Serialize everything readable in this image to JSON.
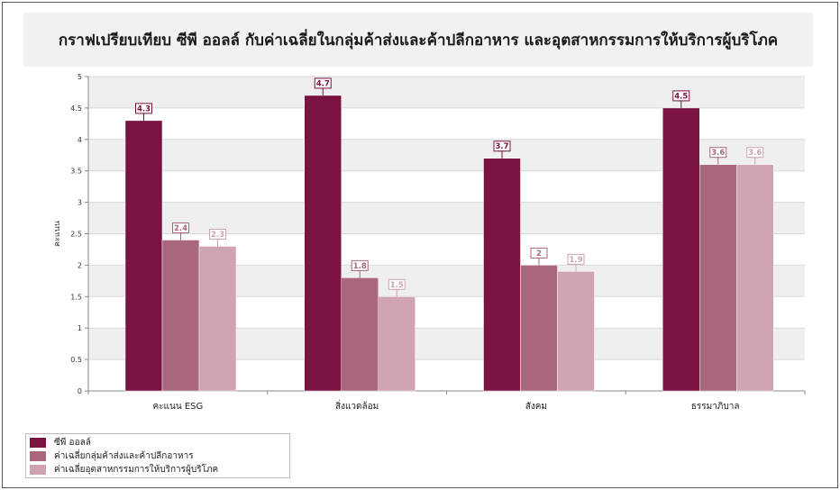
{
  "chart_data": {
    "type": "bar",
    "title": "กราฟเปรียบเทียบ ซีพี ออลล์ กับค่าเฉลี่ยในกลุ่มค้าส่งและค้าปลีกอาหาร และอุตสาหกรรมการให้บริการผู้บริโภค",
    "xlabel": "",
    "ylabel": "คะแนน",
    "ylim": [
      0,
      5
    ],
    "yticks": [
      "0",
      "0.5",
      "1",
      "1.5",
      "2",
      "2.5",
      "3",
      "3.5",
      "4",
      "4.5",
      "5"
    ],
    "grid": true,
    "legend_position": "bottom-left",
    "categories": [
      "คะแนน ESG",
      "สิ่งแวดล้อม",
      "สังคม",
      "ธรรมาภิบาล"
    ],
    "series": [
      {
        "name": "ซีพี ออลล์",
        "values": [
          4.3,
          4.7,
          3.7,
          4.5
        ],
        "labels": [
          "4.3",
          "4.7",
          "3.7",
          "4.5"
        ],
        "color": "#7b1340"
      },
      {
        "name": "ค่าเฉลี่ยกลุ่มค้าส่งและค้าปลีกอาหาร",
        "values": [
          2.4,
          1.8,
          2.0,
          3.6
        ],
        "labels": [
          "2.4",
          "1.8",
          "2",
          "3.6"
        ],
        "color": "#a9677e"
      },
      {
        "name": "ค่าเฉลี่ยอุตสาหกรรมการให้บริการผู้บริโภค",
        "values": [
          2.3,
          1.5,
          1.9,
          3.6
        ],
        "labels": [
          "2.3",
          "1.5",
          "1.9",
          "3.6"
        ],
        "color": "#cfa3b4"
      }
    ]
  }
}
